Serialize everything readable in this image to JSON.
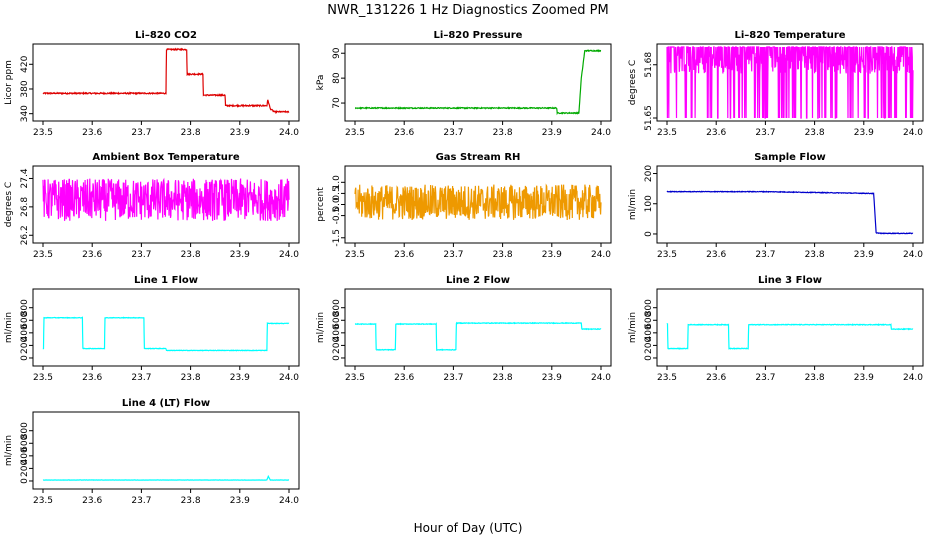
{
  "figure": {
    "title": "NWR_131226  1 Hz Diagnostics Zoomed PM",
    "xlabel": "Hour of Day (UTC)"
  },
  "chart_data": [
    {
      "type": "line",
      "title": "Li–820 CO2",
      "ylabel": "Licor ppm",
      "color": "#dd0000",
      "xlim": [
        23.5,
        24.0
      ],
      "xticks": [
        "23.5",
        "23.6",
        "23.7",
        "23.8",
        "23.9",
        "24.0"
      ],
      "yticks": [
        "340",
        "380",
        "420"
      ],
      "ytick_values": [
        340,
        380,
        420
      ],
      "ylim": [
        333,
        448
      ],
      "x": [
        23.5,
        23.75,
        23.751,
        23.792,
        23.793,
        23.825,
        23.826,
        23.87,
        23.871,
        23.955,
        23.957,
        23.962,
        23.97,
        24.0
      ],
      "y": [
        373,
        373,
        444,
        444,
        404,
        404,
        370,
        370,
        353,
        353,
        362,
        348,
        343,
        343
      ],
      "noise": 1
    },
    {
      "type": "line",
      "title": "Li–820 Pressure",
      "ylabel": "kPa",
      "color": "#00aa00",
      "xlim": [
        23.5,
        24.0
      ],
      "xticks": [
        "23.5",
        "23.6",
        "23.7",
        "23.8",
        "23.9",
        "24.0"
      ],
      "yticks": [
        "70",
        "80",
        "90"
      ],
      "ytick_values": [
        70,
        80,
        90
      ],
      "ylim": [
        64,
        92.5
      ],
      "x": [
        23.5,
        23.91,
        23.911,
        23.955,
        23.96,
        23.967,
        24.0
      ],
      "y": [
        68,
        68,
        66,
        66,
        80,
        91,
        91
      ],
      "noise": 0.2
    },
    {
      "type": "line",
      "title": "Li–820 Temperature",
      "ylabel": "degrees C",
      "color": "#ff00ff",
      "xlim": [
        23.5,
        24.0
      ],
      "xticks": [
        "23.5",
        "23.6",
        "23.7",
        "23.8",
        "23.9",
        "24.0"
      ],
      "yticks": [
        "51.65",
        "51.68"
      ],
      "ytick_values": [
        51.65,
        51.68
      ],
      "ylim": [
        51.65,
        51.69
      ],
      "x": [
        23.5,
        24.0
      ],
      "y": [
        51.68,
        51.68
      ],
      "noise": 0,
      "toggle": {
        "low": 51.65,
        "high": 51.69,
        "fill_low": 51.675,
        "fill_high": 51.687
      }
    },
    {
      "type": "line",
      "title": "Ambient Box Temperature",
      "ylabel": "degrees C",
      "color": "#ff00ff",
      "xlim": [
        23.5,
        24.0
      ],
      "xticks": [
        "23.5",
        "23.6",
        "23.7",
        "23.8",
        "23.9",
        "24.0"
      ],
      "yticks": [
        "26.2",
        "26.8",
        "27.4"
      ],
      "ytick_values": [
        26.2,
        26.8,
        27.4
      ],
      "ylim": [
        26.1,
        27.6
      ],
      "x": [
        23.5,
        24.0
      ],
      "y": [
        26.95,
        26.95
      ],
      "noise": 0.45
    },
    {
      "type": "line",
      "title": "Gas Stream RH",
      "ylabel": "percent",
      "color": "#ee9900",
      "xlim": [
        23.5,
        24.0
      ],
      "xticks": [
        "23.5",
        "23.6",
        "23.7",
        "23.8",
        "23.9",
        "24.0"
      ],
      "yticks": [
        "-1.5",
        "-0.5",
        "0.0",
        "0.5",
        "1.0"
      ],
      "ytick_values": [
        -1.5,
        -0.5,
        0.0,
        0.5,
        1.0
      ],
      "ylim": [
        -1.6,
        1.6
      ],
      "x": [
        23.5,
        24.0
      ],
      "y": [
        0.1,
        0.1
      ],
      "noise": 0.8
    },
    {
      "type": "line",
      "title": "Sample Flow",
      "ylabel": "ml/min",
      "color": "#0000cc",
      "xlim": [
        23.5,
        24.0
      ],
      "xticks": [
        "23.5",
        "23.6",
        "23.7",
        "23.8",
        "23.9",
        "24.0"
      ],
      "yticks": [
        "0",
        "100",
        "200"
      ],
      "ytick_values": [
        0,
        100,
        200
      ],
      "ylim": [
        -20,
        215
      ],
      "x": [
        23.5,
        23.7,
        23.92,
        23.925,
        23.935,
        24.0
      ],
      "y": [
        140,
        140,
        134,
        4,
        2,
        2
      ],
      "noise": 1
    },
    {
      "type": "line",
      "title": "Line 1 Flow",
      "ylabel": "ml/min",
      "color": "#00ffff",
      "xlim": [
        23.5,
        24.0
      ],
      "xticks": [
        "23.5",
        "23.6",
        "23.7",
        "23.8",
        "23.9",
        "24.0"
      ],
      "yticks": [
        "0",
        "200",
        "400",
        "600",
        "800"
      ],
      "ytick_values": [
        0,
        200,
        400,
        600,
        800
      ],
      "ylim": [
        -80,
        1050
      ],
      "x": [
        23.5,
        23.501,
        23.502,
        23.58,
        23.581,
        23.625,
        23.626,
        23.705,
        23.706,
        23.75,
        23.751,
        23.955,
        23.956,
        24.0
      ],
      "y": [
        150,
        150,
        640,
        640,
        150,
        150,
        640,
        640,
        150,
        150,
        120,
        120,
        550,
        550
      ],
      "noise": 4
    },
    {
      "type": "line",
      "title": "Line 2 Flow",
      "ylabel": "ml/min",
      "color": "#00ffff",
      "xlim": [
        23.5,
        24.0
      ],
      "xticks": [
        "23.5",
        "23.6",
        "23.7",
        "23.8",
        "23.9",
        "24.0"
      ],
      "yticks": [
        "0",
        "200",
        "400",
        "600",
        "800"
      ],
      "ytick_values": [
        0,
        200,
        400,
        600,
        800
      ],
      "ylim": [
        -80,
        1050
      ],
      "x": [
        23.5,
        23.542,
        23.543,
        23.582,
        23.583,
        23.665,
        23.666,
        23.705,
        23.706,
        23.96,
        23.961,
        24.0
      ],
      "y": [
        540,
        540,
        130,
        130,
        540,
        540,
        130,
        130,
        555,
        555,
        460,
        460
      ],
      "noise": 5
    },
    {
      "type": "line",
      "title": "Line 3 Flow",
      "ylabel": "ml/min",
      "color": "#00ffff",
      "xlim": [
        23.5,
        24.0
      ],
      "xticks": [
        "23.5",
        "23.6",
        "23.7",
        "23.8",
        "23.9",
        "24.0"
      ],
      "yticks": [
        "0",
        "200",
        "400",
        "600",
        "800"
      ],
      "ytick_values": [
        0,
        200,
        400,
        600,
        800
      ],
      "ylim": [
        -80,
        1050
      ],
      "x": [
        23.5,
        23.501,
        23.502,
        23.542,
        23.543,
        23.625,
        23.626,
        23.665,
        23.666,
        23.955,
        23.956,
        24.0
      ],
      "y": [
        540,
        540,
        150,
        150,
        530,
        530,
        150,
        150,
        530,
        530,
        460,
        460
      ],
      "noise": 5
    },
    {
      "type": "line",
      "title": "Line 4 (LT) Flow",
      "ylabel": "ml/min",
      "color": "#00ffff",
      "xlim": [
        23.5,
        24.0
      ],
      "xticks": [
        "23.5",
        "23.6",
        "23.7",
        "23.8",
        "23.9",
        "24.0"
      ],
      "yticks": [
        "0",
        "200",
        "400",
        "600",
        "800"
      ],
      "ytick_values": [
        0,
        200,
        400,
        600,
        800
      ],
      "ylim": [
        -80,
        1050
      ],
      "x": [
        23.5,
        23.955,
        23.958,
        23.962,
        24.0
      ],
      "y": [
        15,
        15,
        75,
        15,
        15
      ],
      "noise": 2
    }
  ]
}
